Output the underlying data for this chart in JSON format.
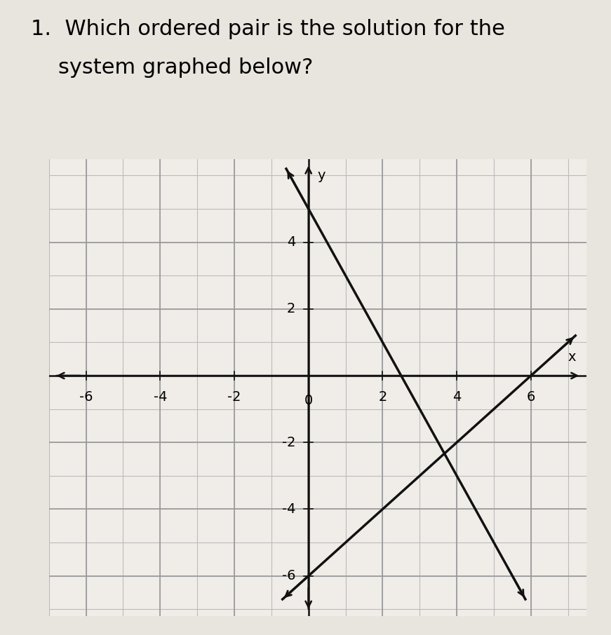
{
  "title_line1": "1.  Which ordered pair is the solution for the",
  "title_line2": "    system graphed below?",
  "title_fontsize": 22,
  "xlim": [
    -7,
    7.5
  ],
  "ylim": [
    -7.2,
    6.5
  ],
  "xticks": [
    -6,
    -4,
    -2,
    0,
    2,
    4,
    6
  ],
  "yticks": [
    -6,
    -4,
    -2,
    2,
    4
  ],
  "ylabel_label": "y",
  "grid_major_color": "#999999",
  "grid_minor_color": "#bbbbbb",
  "line1_slope": -2,
  "line1_intercept": 5,
  "line1_color": "#111111",
  "line1_lw": 2.5,
  "line2_slope": 1,
  "line2_intercept": -6,
  "line2_color": "#111111",
  "line2_lw": 2.5,
  "bg_color": "#f0ede8",
  "paper_color": "#e8e4de",
  "axis_color": "#111111",
  "tick_fontsize": 14
}
